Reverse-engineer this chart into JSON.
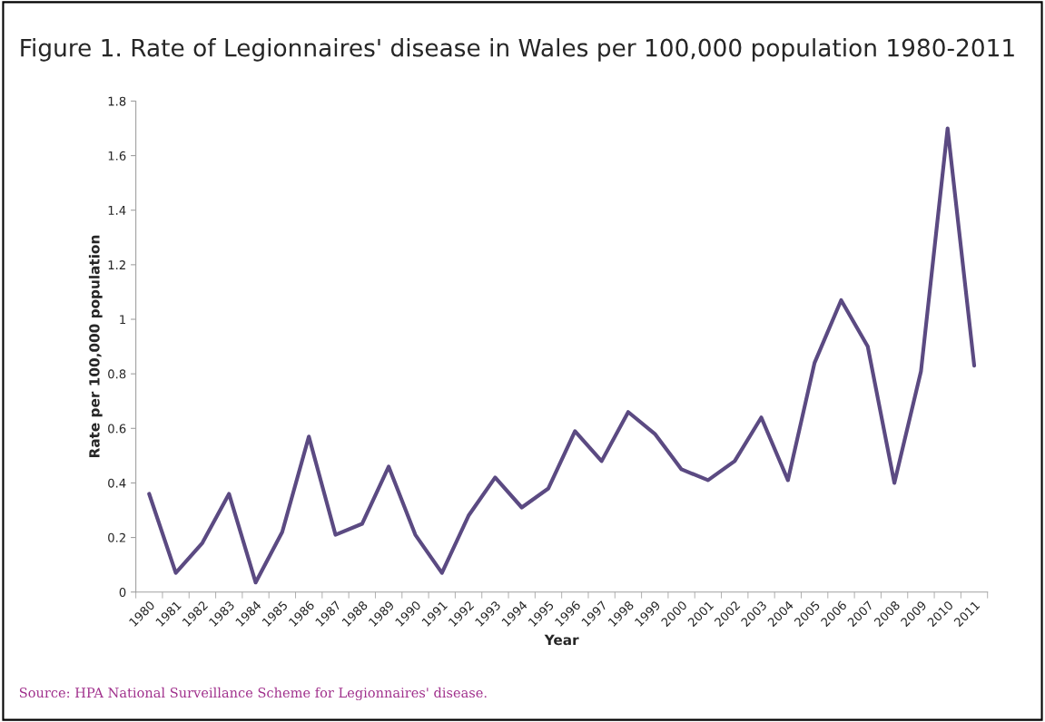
{
  "chart_data": {
    "type": "line",
    "title": "Figure 1. Rate of Legionnaires' disease in Wales per 100,000 population 1980-2011",
    "xlabel": "Year",
    "ylabel": "Rate per 100,000 population",
    "categories": [
      "1980",
      "1981",
      "1982",
      "1983",
      "1984",
      "1985",
      "1986",
      "1987",
      "1988",
      "1989",
      "1990",
      "1991",
      "1992",
      "1993",
      "1994",
      "1995",
      "1996",
      "1997",
      "1998",
      "1999",
      "2000",
      "2001",
      "2002",
      "2003",
      "2004",
      "2005",
      "2006",
      "2007",
      "2008",
      "2009",
      "2010",
      "2011"
    ],
    "series": [
      {
        "color": "#5b4a82",
        "values": [
          0.36,
          0.07,
          0.18,
          0.36,
          0.035,
          0.22,
          0.57,
          0.21,
          0.25,
          0.46,
          0.21,
          0.07,
          0.28,
          0.42,
          0.31,
          0.38,
          0.59,
          0.48,
          0.66,
          0.58,
          0.45,
          0.41,
          0.48,
          0.64,
          0.41,
          0.84,
          1.07,
          0.9,
          0.4,
          0.81,
          1.7,
          0.83
        ]
      }
    ],
    "ylim": [
      0,
      1.8
    ],
    "yticks": [
      0,
      0.2,
      0.4,
      0.6,
      0.8,
      1,
      1.2,
      1.4,
      1.6,
      1.8
    ],
    "grid": false,
    "marker": "none",
    "line_style": "solid",
    "annotations": [
      "Source: HPA National Surveillance Scheme for Legionnaires' disease."
    ]
  }
}
